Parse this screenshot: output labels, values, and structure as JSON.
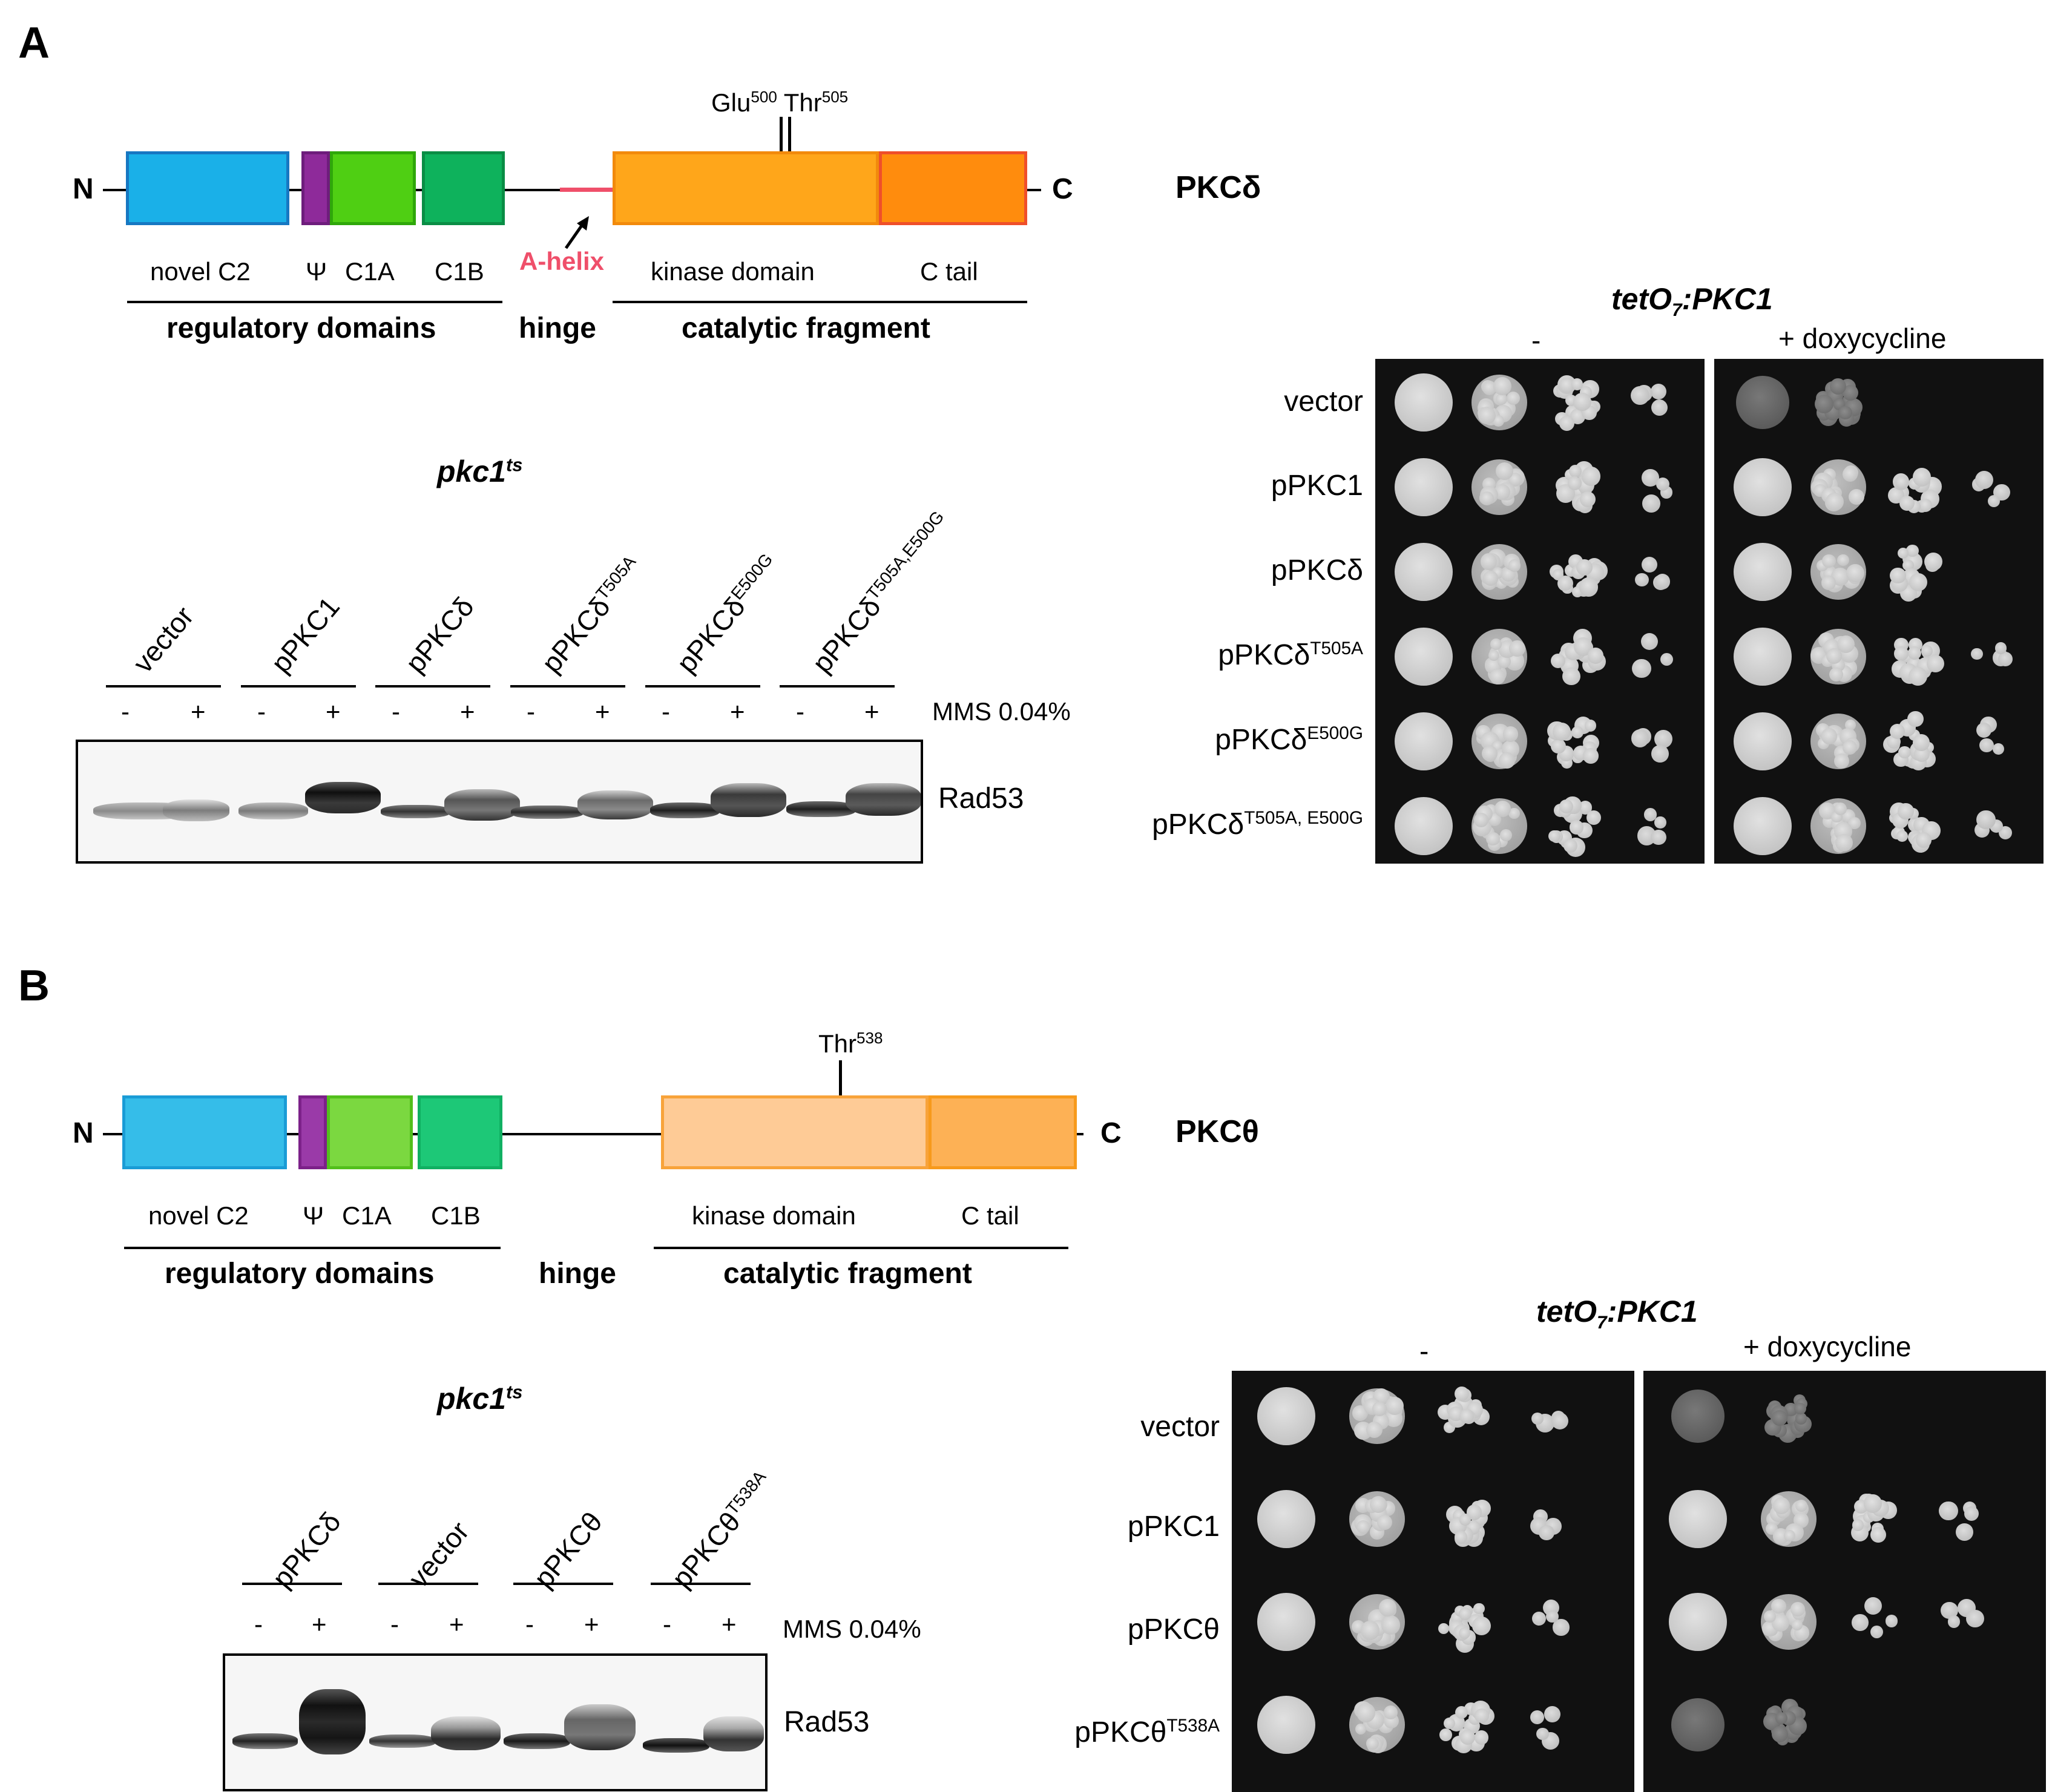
{
  "panelA": {
    "letter": "A",
    "protein": "PKCδ",
    "n_term": "N",
    "c_term": "C",
    "site1_name": "Glu",
    "site1_num": "500",
    "site2_name": "Thr",
    "site2_num": "505",
    "domains": [
      "novel C2",
      "Ψ",
      "C1A",
      "C1B",
      "kinase domain",
      "C tail"
    ],
    "a_helix": "A-helix",
    "groups": [
      "regulatory domains",
      "hinge",
      "catalytic fragment"
    ],
    "blot": {
      "title_base": "pkc1",
      "title_sup": "ts",
      "lanes": [
        {
          "base": "vector",
          "sup": ""
        },
        {
          "base": "pPKC1",
          "sup": ""
        },
        {
          "base": "pPKCδ",
          "sup": ""
        },
        {
          "base": "pPKCδ",
          "sup": "T505A"
        },
        {
          "base": "pPKCδ",
          "sup": "E500G"
        },
        {
          "base": "pPKCδ",
          "sup": "T505A,E500G"
        }
      ],
      "treat_minus": "-",
      "treat_plus": "+",
      "treatment": "MMS 0.04%",
      "band_label": "Rad53"
    },
    "spot": {
      "title_base": "tetO",
      "title_sub": "7",
      "title_rest": ":PKC1",
      "cond_minus": "-",
      "cond_plus": "+ doxycycline",
      "strains": [
        {
          "base": "vector",
          "sup": ""
        },
        {
          "base": "pPKC1",
          "sup": ""
        },
        {
          "base": "pPKCδ",
          "sup": ""
        },
        {
          "base": "pPKCδ",
          "sup": "T505A"
        },
        {
          "base": "pPKCδ",
          "sup": "E500G"
        },
        {
          "base": "pPKCδ",
          "sup": "T505A, E500G"
        }
      ]
    }
  },
  "panelB": {
    "letter": "B",
    "protein": "PKCθ",
    "n_term": "N",
    "c_term": "C",
    "site_name": "Thr",
    "site_num": "538",
    "domains": [
      "novel C2",
      "Ψ",
      "C1A",
      "C1B",
      "kinase domain",
      "C tail"
    ],
    "groups": [
      "regulatory domains",
      "hinge",
      "catalytic fragment"
    ],
    "blot": {
      "title_base": "pkc1",
      "title_sup": "ts",
      "lanes": [
        {
          "base": "pPKCδ",
          "sup": ""
        },
        {
          "base": "vector",
          "sup": ""
        },
        {
          "base": "pPKCθ",
          "sup": ""
        },
        {
          "base": "pPKCθ",
          "sup": "T538A"
        }
      ],
      "treat_minus": "-",
      "treat_plus": "+",
      "treatment": "MMS 0.04%",
      "band_label": "Rad53"
    },
    "spot": {
      "title_base": "tetO",
      "title_sub": "7",
      "title_rest": ":PKC1",
      "cond_minus": "-",
      "cond_plus": "+ doxycycline",
      "strains": [
        {
          "base": "vector",
          "sup": ""
        },
        {
          "base": "pPKC1",
          "sup": ""
        },
        {
          "base": "pPKCθ",
          "sup": ""
        },
        {
          "base": "pPKCθ",
          "sup": "T538A"
        }
      ]
    }
  },
  "colors": {
    "c2": "#1ab0e8",
    "psi": "#8e2a9a",
    "c1a": "#4fcf13",
    "c1b": "#0eb25c",
    "kinase": "#ffa61a",
    "ctail": "#ff8c0d",
    "ahelix": "#ef4f6a",
    "c2_b": "#35bde9",
    "c1a_b": "#7bd840",
    "c1b_b": "#1dc877",
    "kinase_b": "#fecb96",
    "ctail_b": "#fdb155"
  }
}
